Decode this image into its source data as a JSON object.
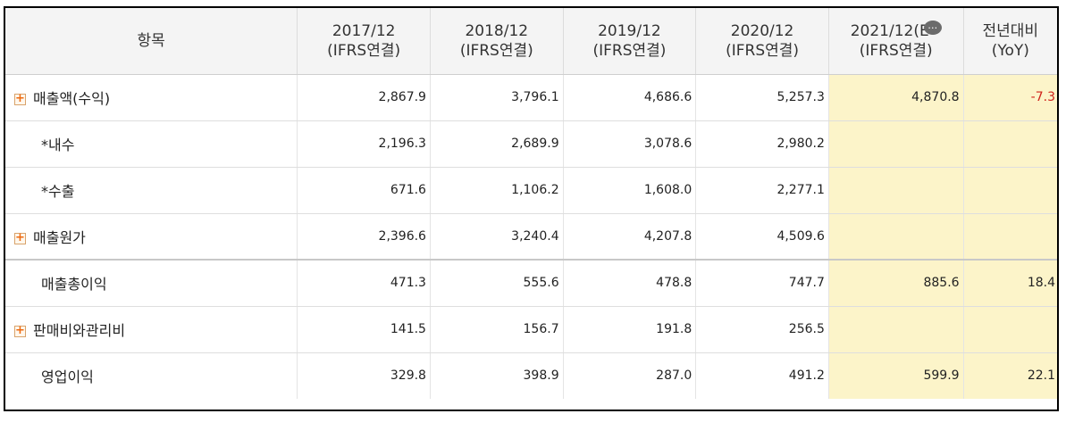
{
  "header": {
    "item_label": "항목",
    "periods": [
      {
        "line1": "2017/12",
        "line2": "(IFRS연결)"
      },
      {
        "line1": "2018/12",
        "line2": "(IFRS연결)"
      },
      {
        "line1": "2019/12",
        "line2": "(IFRS연결)"
      },
      {
        "line1": "2020/12",
        "line2": "(IFRS연결)"
      },
      {
        "line1": "2021/12(E",
        "line2": "(IFRS연결)"
      }
    ],
    "yoy_line1": "전년대비",
    "yoy_line2": "(YoY)",
    "estimate_bubble_icon": "…"
  },
  "rows": [
    {
      "label": "매출액(수익)",
      "expandable": true,
      "expand_icon": "+",
      "values": [
        "2,867.9",
        "3,796.1",
        "4,686.6",
        "5,257.3",
        "4,870.8"
      ],
      "yoy": "-7.3"
    },
    {
      "label": "*내수",
      "expandable": false,
      "values": [
        "2,196.3",
        "2,689.9",
        "3,078.6",
        "2,980.2",
        ""
      ],
      "yoy": ""
    },
    {
      "label": "*수출",
      "expandable": false,
      "values": [
        "671.6",
        "1,106.2",
        "1,608.0",
        "2,277.1",
        ""
      ],
      "yoy": ""
    },
    {
      "label": "매출원가",
      "expandable": true,
      "expand_icon": "+",
      "values": [
        "2,396.6",
        "3,240.4",
        "4,207.8",
        "4,509.6",
        ""
      ],
      "yoy": ""
    },
    {
      "label": "매출총이익",
      "expandable": false,
      "values": [
        "471.3",
        "555.6",
        "478.8",
        "747.7",
        "885.6"
      ],
      "yoy": "18.4"
    },
    {
      "label": "판매비와관리비",
      "expandable": true,
      "expand_icon": "+",
      "values": [
        "141.5",
        "156.7",
        "191.8",
        "256.5",
        ""
      ],
      "yoy": ""
    },
    {
      "label": "영업이익",
      "expandable": false,
      "values": [
        "329.8",
        "398.9",
        "287.0",
        "491.2",
        "599.9"
      ],
      "yoy": "22.1"
    }
  ],
  "colors": {
    "estimate_highlight": "#fcf4c9",
    "negative": "#d0241c",
    "expand_icon": "#ee6a10"
  }
}
